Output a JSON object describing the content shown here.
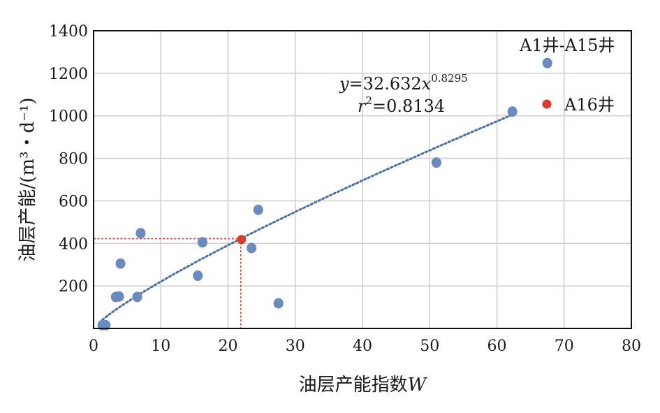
{
  "chart_data": {
    "type": "scatter",
    "xlabel_text": "油层产能指数",
    "xlabel_var": "W",
    "ylabel": "油层产能/(m³・d⁻¹)",
    "xlim": [
      0,
      80
    ],
    "ylim": [
      0,
      1400
    ],
    "xticks": [
      "0",
      "10",
      "20",
      "30",
      "40",
      "50",
      "60",
      "70",
      "80"
    ],
    "yticks": [
      "200",
      "400",
      "600",
      "800",
      "1000",
      "1200",
      "1400"
    ],
    "x_tick_values": [
      0,
      10,
      20,
      30,
      40,
      50,
      60,
      70,
      80
    ],
    "y_tick_values": [
      200,
      400,
      600,
      800,
      1000,
      1200,
      1400
    ],
    "grid": true,
    "legend_position": "top-right",
    "series": [
      {
        "name": "A1井-A15井",
        "color": "#6a8bbf",
        "points": [
          {
            "x": 1.3,
            "y": 15
          },
          {
            "x": 1.8,
            "y": 15
          },
          {
            "x": 3.3,
            "y": 148
          },
          {
            "x": 3.8,
            "y": 150
          },
          {
            "x": 4.0,
            "y": 305
          },
          {
            "x": 6.5,
            "y": 148
          },
          {
            "x": 7.0,
            "y": 448
          },
          {
            "x": 15.5,
            "y": 248
          },
          {
            "x": 16.2,
            "y": 405
          },
          {
            "x": 23.5,
            "y": 378
          },
          {
            "x": 24.5,
            "y": 558
          },
          {
            "x": 27.5,
            "y": 118
          },
          {
            "x": 51.0,
            "y": 780
          },
          {
            "x": 62.3,
            "y": 1020
          },
          {
            "x": 67.5,
            "y": 1248
          }
        ]
      },
      {
        "name": "A16井",
        "color": "#e03a2a",
        "points": [
          {
            "x": 22.0,
            "y": 418
          }
        ]
      }
    ],
    "fit": {
      "color": "#4a6fa5",
      "coef": 32.632,
      "exponent": 0.8295,
      "x_range": [
        1.3,
        62.3
      ],
      "equation_lhs": "y",
      "equation_rhs": "=32.632",
      "equation_var": "x",
      "equation_exp": "0.8295",
      "r2_var": "r",
      "r2_sup": "2",
      "r2_value": "=0.8134"
    },
    "reference_lines": {
      "color": "#e03a2a",
      "x": 21.9,
      "y": 422
    }
  }
}
